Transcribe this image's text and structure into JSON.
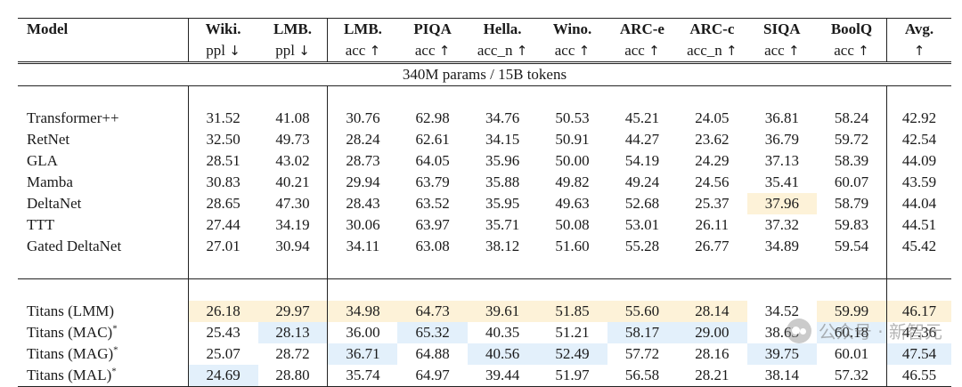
{
  "table": {
    "header_row1": [
      "Model",
      "Wiki.",
      "LMB.",
      "LMB.",
      "PIQA",
      "Hella.",
      "Wino.",
      "ARC-e",
      "ARC-c",
      "SIQA",
      "BoolQ",
      "Avg."
    ],
    "header_row2": [
      "",
      "ppl",
      "ppl",
      "acc",
      "acc",
      "acc_n",
      "acc",
      "acc",
      "acc_n",
      "acc",
      "acc",
      ""
    ],
    "header_arrows": [
      "",
      "↓",
      "↓",
      "↑",
      "↑",
      "↑",
      "↑",
      "↑",
      "↑",
      "↑",
      "↑",
      "↑"
    ],
    "section_label": "340M params / 15B tokens",
    "baseline_rows": [
      {
        "model": "Transformer++",
        "values": [
          "31.52",
          "41.08",
          "30.76",
          "62.98",
          "34.76",
          "50.53",
          "45.21",
          "24.05",
          "36.81",
          "58.24",
          "42.92"
        ]
      },
      {
        "model": "RetNet",
        "values": [
          "32.50",
          "49.73",
          "28.24",
          "62.61",
          "34.15",
          "50.91",
          "44.27",
          "23.62",
          "36.79",
          "59.72",
          "42.54"
        ]
      },
      {
        "model": "GLA",
        "values": [
          "28.51",
          "43.02",
          "28.73",
          "64.05",
          "35.96",
          "50.00",
          "54.19",
          "24.29",
          "37.13",
          "58.39",
          "44.09"
        ]
      },
      {
        "model": "Mamba",
        "values": [
          "30.83",
          "40.21",
          "29.94",
          "63.79",
          "35.88",
          "49.82",
          "49.24",
          "24.56",
          "35.41",
          "60.07",
          "43.59"
        ]
      },
      {
        "model": "DeltaNet",
        "values": [
          "28.65",
          "47.30",
          "28.43",
          "63.52",
          "35.95",
          "49.63",
          "52.68",
          "25.37",
          "37.96",
          "58.79",
          "44.04"
        ]
      },
      {
        "model": "TTT",
        "values": [
          "27.44",
          "34.19",
          "30.06",
          "63.97",
          "35.71",
          "50.08",
          "53.01",
          "26.11",
          "37.32",
          "59.83",
          "44.51"
        ]
      },
      {
        "model": "Gated DeltaNet",
        "values": [
          "27.01",
          "30.94",
          "34.11",
          "63.08",
          "38.12",
          "51.60",
          "55.28",
          "26.77",
          "34.89",
          "59.54",
          "45.42"
        ]
      }
    ],
    "titans_rows": [
      {
        "model": "Titans (LMM)",
        "sup": "",
        "values": [
          "26.18",
          "29.97",
          "34.98",
          "64.73",
          "39.61",
          "51.85",
          "55.60",
          "28.14",
          "34.52",
          "59.99",
          "46.17"
        ]
      },
      {
        "model": "Titans (MAC)",
        "sup": "*",
        "values": [
          "25.43",
          "28.13",
          "36.00",
          "65.32",
          "40.35",
          "51.21",
          "58.17",
          "29.00",
          "38.63",
          "60.18",
          "47.36"
        ]
      },
      {
        "model": "Titans (MAG)",
        "sup": "*",
        "values": [
          "25.07",
          "28.72",
          "36.71",
          "64.88",
          "40.56",
          "52.49",
          "57.72",
          "28.16",
          "39.75",
          "60.01",
          "47.54"
        ]
      },
      {
        "model": "Titans (MAL)",
        "sup": "*",
        "values": [
          "24.69",
          "28.80",
          "35.74",
          "64.97",
          "39.44",
          "51.97",
          "56.58",
          "28.21",
          "38.14",
          "57.32",
          "46.55"
        ]
      }
    ]
  },
  "watermark": {
    "text": "公众号 · 新智元",
    "icon": "wechat-icon"
  },
  "colors": {
    "highlight_yellow": "#fdf2d8",
    "highlight_blue": "#e3f0fb",
    "rule": "#222222"
  }
}
